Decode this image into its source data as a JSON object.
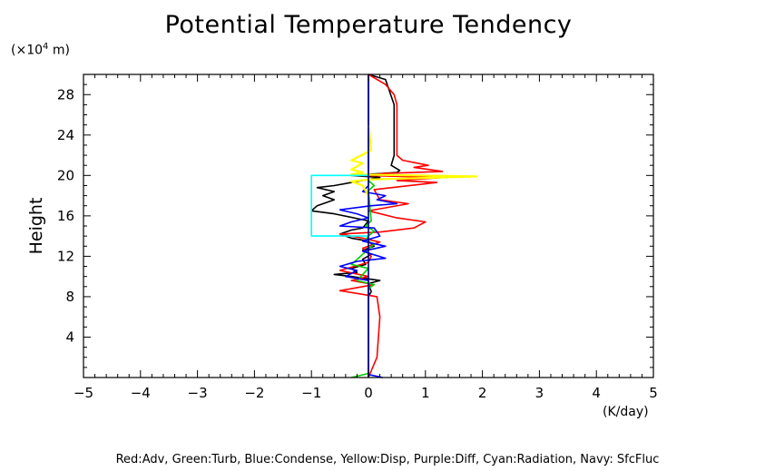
{
  "chart_data": {
    "type": "line",
    "title": "Potential Temperature Tendency",
    "ylabel": "Height",
    "yunit_prefix": "(×10",
    "yunit_exp": "4",
    "yunit_suffix": " m)",
    "xunit": "(K/day)",
    "xlim": [
      -5,
      5
    ],
    "ylim": [
      0,
      30
    ],
    "x_ticks": [
      -5,
      -4,
      -3,
      -2,
      -1,
      0,
      1,
      2,
      3,
      4,
      5
    ],
    "x_tick_labels": [
      "−5",
      "−4",
      "−3",
      "−2",
      "−1",
      "0",
      "1",
      "2",
      "3",
      "4",
      "5"
    ],
    "y_ticks": [
      4,
      8,
      12,
      16,
      20,
      24,
      28
    ],
    "y_tick_labels": [
      "4",
      "8",
      "12",
      "16",
      "20",
      "24",
      "28"
    ],
    "legend_text": "Red:Adv, Green:Turb, Blue:Condense, Yellow:Disp, Purple:Diff, Cyan:Radiation, Navy: SfcFluc",
    "series": [
      {
        "color": "#000000",
        "points": [
          [
            0.0,
            30
          ],
          [
            0.3,
            29.5
          ],
          [
            0.45,
            27
          ],
          [
            0.45,
            22
          ],
          [
            0.4,
            21
          ],
          [
            0.55,
            20.5
          ],
          [
            0.5,
            20.3
          ],
          [
            -0.3,
            20.0
          ],
          [
            0.2,
            19.8
          ],
          [
            -0.3,
            19.3
          ],
          [
            -0.6,
            19.0
          ],
          [
            -0.9,
            18.8
          ],
          [
            -0.6,
            18.4
          ],
          [
            -0.8,
            18.0
          ],
          [
            -0.6,
            17.6
          ],
          [
            -0.9,
            17.0
          ],
          [
            -1.0,
            16.5
          ],
          [
            -0.6,
            16.2
          ],
          [
            0.0,
            15.5
          ],
          [
            -0.1,
            14.8
          ],
          [
            -0.3,
            14.6
          ],
          [
            -0.5,
            14.2
          ],
          [
            -0.3,
            13.8
          ],
          [
            0.0,
            13.5
          ],
          [
            0.1,
            13.0
          ],
          [
            -0.1,
            12.6
          ],
          [
            0.05,
            12.2
          ],
          [
            -0.1,
            11.7
          ],
          [
            -0.05,
            11.2
          ],
          [
            -0.3,
            10.8
          ],
          [
            -0.2,
            10.4
          ],
          [
            -0.6,
            10.2
          ],
          [
            -0.3,
            10.0
          ],
          [
            0.2,
            9.6
          ],
          [
            0.0,
            9.3
          ],
          [
            0.05,
            8.5
          ],
          [
            0.0,
            8.0
          ],
          [
            0.0,
            0
          ]
        ]
      },
      {
        "color": "#ff0000",
        "points": [
          [
            0.0,
            30
          ],
          [
            0.3,
            29
          ],
          [
            0.45,
            28
          ],
          [
            0.5,
            27
          ],
          [
            0.5,
            22
          ],
          [
            0.6,
            21.5
          ],
          [
            1.05,
            21.0
          ],
          [
            0.8,
            20.8
          ],
          [
            1.3,
            20.4
          ],
          [
            0.3,
            20.2
          ],
          [
            -0.1,
            20.0
          ],
          [
            1.3,
            19.8
          ],
          [
            0.5,
            19.5
          ],
          [
            1.2,
            19.3
          ],
          [
            0.1,
            18.6
          ],
          [
            0.2,
            17.6
          ],
          [
            0.7,
            17.2
          ],
          [
            0.3,
            16.8
          ],
          [
            0.0,
            16.5
          ],
          [
            0.5,
            15.8
          ],
          [
            1.0,
            15.4
          ],
          [
            0.8,
            14.8
          ],
          [
            0.2,
            14.4
          ],
          [
            -0.5,
            14.2
          ],
          [
            -0.1,
            13.8
          ],
          [
            0.2,
            13.4
          ],
          [
            -0.1,
            12.8
          ],
          [
            0.05,
            12.0
          ],
          [
            0.0,
            11.4
          ],
          [
            -0.5,
            10.6
          ],
          [
            0.0,
            10.0
          ],
          [
            -0.3,
            9.6
          ],
          [
            0.1,
            9.2
          ],
          [
            -0.5,
            8.6
          ],
          [
            0.15,
            8.0
          ],
          [
            0.2,
            6.0
          ],
          [
            0.15,
            2.0
          ],
          [
            0.0,
            0
          ]
        ]
      },
      {
        "color": "#00cc00",
        "points": [
          [
            0.0,
            30
          ],
          [
            0.0,
            19.5
          ],
          [
            0.1,
            19.0
          ],
          [
            0.0,
            18.5
          ],
          [
            0.05,
            15.5
          ],
          [
            -0.05,
            15.0
          ],
          [
            0.1,
            14.5
          ],
          [
            0.0,
            14.0
          ],
          [
            -0.05,
            13.6
          ],
          [
            0.1,
            13.2
          ],
          [
            -0.1,
            12.2
          ],
          [
            -0.3,
            11.2
          ],
          [
            0.0,
            10.8
          ],
          [
            -0.2,
            9.6
          ],
          [
            0.1,
            9.2
          ],
          [
            0.0,
            8.8
          ],
          [
            0.0,
            0.4
          ],
          [
            -0.3,
            0
          ]
        ]
      },
      {
        "color": "#0000ff",
        "points": [
          [
            0.0,
            30
          ],
          [
            0.0,
            19.0
          ],
          [
            -0.1,
            18.4
          ],
          [
            0.3,
            18.0
          ],
          [
            0.15,
            17.6
          ],
          [
            0.5,
            17.2
          ],
          [
            0.05,
            17.0
          ],
          [
            -0.5,
            16.6
          ],
          [
            -0.2,
            16.2
          ],
          [
            0.0,
            15.8
          ],
          [
            -0.3,
            15.4
          ],
          [
            -0.5,
            15.0
          ],
          [
            0.1,
            14.8
          ],
          [
            0.2,
            14.0
          ],
          [
            -0.1,
            13.5
          ],
          [
            0.3,
            13.0
          ],
          [
            -0.1,
            12.5
          ],
          [
            0.3,
            11.8
          ],
          [
            -0.2,
            11.5
          ],
          [
            -0.5,
            11.0
          ],
          [
            -0.2,
            10.6
          ],
          [
            -0.4,
            10.0
          ],
          [
            0.0,
            9.6
          ],
          [
            0.0,
            0.3
          ],
          [
            0.25,
            0
          ]
        ]
      },
      {
        "color": "#ffff00",
        "points": [
          [
            0.0,
            25
          ],
          [
            0.05,
            22.5
          ],
          [
            -0.3,
            21.5
          ],
          [
            -0.1,
            21.2
          ],
          [
            -0.3,
            20.6
          ],
          [
            -0.1,
            20.3
          ],
          [
            -0.3,
            20.1
          ],
          [
            1.9,
            19.9
          ],
          [
            0.0,
            19.6
          ],
          [
            -0.3,
            19.4
          ],
          [
            -0.1,
            19.0
          ],
          [
            0.0,
            18.0
          ]
        ]
      },
      {
        "color": "#00ffff",
        "points": [
          [
            -1.0,
            20.0
          ],
          [
            0.0,
            20.0
          ],
          [
            -1.0,
            20.0
          ],
          [
            -1.0,
            14.0
          ],
          [
            -0.3,
            14.0
          ],
          [
            0.0,
            14.0
          ]
        ]
      },
      {
        "color": "#000080",
        "points": [
          [
            0.0,
            30
          ],
          [
            0.0,
            0
          ]
        ]
      }
    ]
  }
}
